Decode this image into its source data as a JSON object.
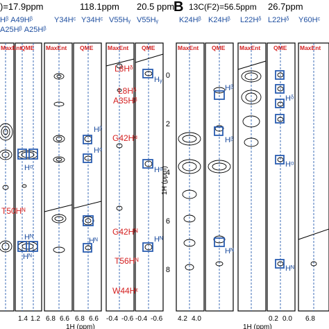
{
  "panel_b_label": "B",
  "panel_a_header": {
    "shift1": ")=17.9ppm",
    "shift2": "118.1ppm",
    "shift3": "20.5 ppm"
  },
  "panel_b_header": {
    "c_label": "13C(F2)=56.5ppm",
    "shift2": "26.7ppm"
  },
  "strip_labels_a": [
    {
      "text": "Hᵝ A49Hᵝ",
      "color": "#1f4fa0"
    },
    {
      "text": "A25Hᵝ A25Hᵝ",
      "color": "#1f4fa0"
    },
    {
      "text": "Y34Hᶜ",
      "color": "#1f4fa0"
    },
    {
      "text": "Y34Hᶜ",
      "color": "#1f4fa0"
    },
    {
      "text": "V55Hᵧ",
      "color": "#1f4fa0"
    },
    {
      "text": "V55Hᵧ",
      "color": "#1f4fa0"
    }
  ],
  "strip_labels_b": [
    {
      "text": "K24Hᵝ"
    },
    {
      "text": "K24Hᵝ"
    },
    {
      "text": "L22Hᵟ"
    },
    {
      "text": "L22Hᵟ"
    },
    {
      "text": "Y60Hᶜ"
    }
  ],
  "method_labels": [
    "MaxEnt",
    "QME",
    "MaxEnt",
    "QME",
    "MaxEnt",
    "QME",
    "MaxEnt",
    "QME",
    "MaxEnt",
    "QME",
    "MaxEnt"
  ],
  "red_annotations": {
    "l8h_top": "L8Hᵟ",
    "l8h_mid": "L8Hᵟ",
    "a35h": "A35Hᵝ",
    "g42h_a": "G42Hᵅ",
    "t50h": "T50Hᴺ",
    "g42h_n": "G42Hᴺ",
    "t56h": "T56Hᴺ",
    "w44h": "W44Hᵋ"
  },
  "blue_annotations": {
    "hb": "Hᵝ",
    "ha": "Hᵅ",
    "hn": "Hᴺ",
    "hy": "Hᵧ",
    "hd": "Hᵟ"
  },
  "x_ticks": {
    "a1": [
      "1.4",
      "1.2"
    ],
    "a2": [
      "6.8",
      "6.6"
    ],
    "a3": [
      "6.8",
      "6.6"
    ],
    "a4": [
      "-0.4",
      "-0.6"
    ],
    "a5": [
      "-0.4",
      "-0.6"
    ],
    "b1": [
      "4.2",
      "4.0"
    ],
    "b2": [
      "0.2",
      "0.0"
    ],
    "b3": [
      "6.8"
    ]
  },
  "x_axis_label_a": "1H (ppm)",
  "x_axis_label_b": "1H (ppm)",
  "y_axis_label": "1H (ppm)",
  "y_ticks": [
    "0",
    "2",
    "4",
    "6",
    "8"
  ],
  "colors": {
    "contour": "#000000",
    "dashed_line": "#2a5db0",
    "box": "#2a5db0",
    "red_text": "#d42020",
    "blue_text": "#1f4fa0"
  }
}
